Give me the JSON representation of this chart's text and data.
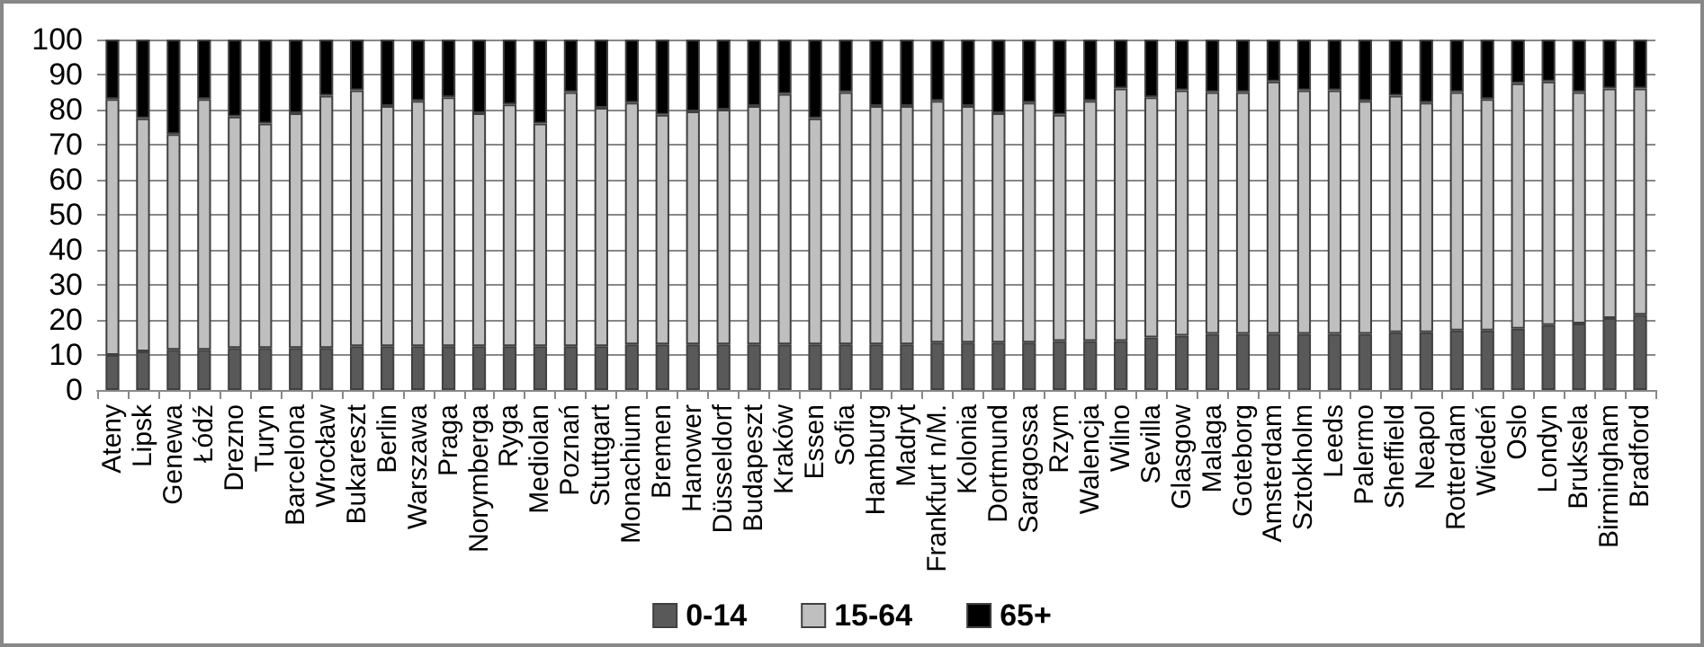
{
  "chart_data": {
    "type": "bar",
    "stacked": true,
    "grid": "y",
    "legend": "bottom",
    "categories": [
      "Ateny",
      "Lipsk",
      "Genewa",
      "Łódź",
      "Drezno",
      "Turyn",
      "Barcelona",
      "Wrocław",
      "Bukareszt",
      "Berlin",
      "Warszawa",
      "Praga",
      "Norymberga",
      "Ryga",
      "Mediolan",
      "Poznań",
      "Stuttgart",
      "Monachium",
      "Bremen",
      "Hanower",
      "Düsseldorf",
      "Budapeszt",
      "Kraków",
      "Essen",
      "Sofia",
      "Hamburg",
      "Madryt",
      "Frankfurt n/M.",
      "Kolonia",
      "Dortmund",
      "Saragossa",
      "Rzym",
      "Walencja",
      "Wilno",
      "Sevilla",
      "Glasgow",
      "Malaga",
      "Goteborg",
      "Amsterdam",
      "Sztokholm",
      "Leeds",
      "Palermo",
      "Sheffield",
      "Neapol",
      "Rotterdam",
      "Wiedeń",
      "Oslo",
      "Londyn",
      "Bruksela",
      "Birmingham",
      "Bradford"
    ],
    "series": [
      {
        "name": "0-14",
        "color": "#595959",
        "values": [
          10,
          11,
          11.5,
          11.5,
          12,
          12,
          12,
          12,
          12.5,
          12.5,
          12.5,
          12.5,
          12.5,
          12.5,
          12.5,
          12.5,
          12.5,
          13,
          13,
          13,
          13,
          13,
          13,
          13,
          13,
          13,
          13,
          13.5,
          13.5,
          13.5,
          13.5,
          14,
          14,
          14,
          15,
          15.5,
          16,
          16,
          16,
          16,
          16,
          16,
          16.5,
          16.5,
          17,
          17,
          17.5,
          18.5,
          19,
          20.5,
          21.5
        ]
      },
      {
        "name": "15-64",
        "color": "#bfbfbf",
        "values": [
          73,
          66.5,
          61.5,
          71.5,
          66,
          64,
          67,
          72,
          73,
          68.5,
          70,
          71,
          66.5,
          69,
          63.5,
          72.5,
          68,
          69,
          65.5,
          66.5,
          67,
          68,
          71.5,
          64.5,
          72,
          68,
          68,
          69,
          67.5,
          65.5,
          68.5,
          64.5,
          68.5,
          72,
          68.5,
          70,
          69,
          69,
          72,
          69.5,
          69.5,
          66.5,
          67.5,
          65.5,
          68,
          66,
          70,
          69.5,
          66,
          65.5,
          64.5
        ]
      },
      {
        "name": "65+",
        "color": "#000000",
        "values": [
          17,
          22.5,
          27,
          17,
          22,
          24,
          21,
          16,
          14.5,
          19,
          17.5,
          16.5,
          21,
          18.5,
          24,
          15,
          19.5,
          18,
          21.5,
          20.5,
          20,
          19,
          15.5,
          22.5,
          15,
          19,
          19,
          17.5,
          19,
          21,
          18,
          21.5,
          17.5,
          14,
          16.5,
          14.5,
          15,
          15,
          12,
          14.5,
          14.5,
          17.5,
          16,
          18,
          15,
          17,
          12.5,
          12,
          15,
          14,
          14
        ]
      }
    ],
    "ylim": [
      0,
      100
    ],
    "yticks": [
      0,
      10,
      20,
      30,
      40,
      50,
      60,
      70,
      80,
      90,
      100
    ]
  }
}
